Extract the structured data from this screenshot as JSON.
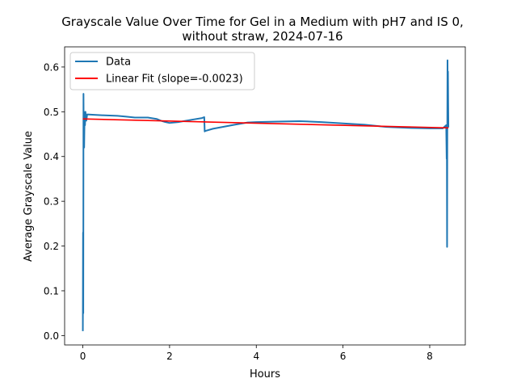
{
  "chart_data": {
    "type": "line",
    "title_line1": "Grayscale Value Over Time for Gel in a Medium with pH7 and IS 0,",
    "title_line2": "without straw, 2024-07-16",
    "xlabel": "Hours",
    "ylabel": "Average Grayscale Value",
    "xlim": [
      -0.42,
      8.82
    ],
    "ylim": [
      -0.021,
      0.645
    ],
    "xticks": [
      0,
      2,
      4,
      6,
      8
    ],
    "xtick_labels": [
      "0",
      "2",
      "4",
      "6",
      "8"
    ],
    "yticks": [
      0.0,
      0.1,
      0.2,
      0.3,
      0.4,
      0.5,
      0.6
    ],
    "ytick_labels": [
      "0.0",
      "0.1",
      "0.2",
      "0.3",
      "0.4",
      "0.5",
      "0.6"
    ],
    "grid": false,
    "legend_position": "upper left",
    "series": [
      {
        "name": "Data",
        "color": "#1f77b4",
        "x": [
          0.0,
          0.005,
          0.01,
          0.015,
          0.02,
          0.025,
          0.03,
          0.04,
          0.05,
          0.06,
          0.08,
          0.1,
          0.3,
          0.5,
          0.8,
          1.0,
          1.2,
          1.5,
          1.7,
          1.8,
          1.9,
          2.0,
          2.2,
          2.5,
          2.75,
          2.8,
          2.81,
          2.82,
          3.0,
          3.5,
          3.8,
          4.0,
          4.5,
          5.0,
          5.5,
          6.0,
          6.5,
          7.0,
          7.5,
          8.0,
          8.3,
          8.38,
          8.39,
          8.395,
          8.4,
          8.405,
          8.41,
          8.415,
          8.42,
          8.425,
          8.43
        ],
        "y": [
          0.01,
          0.23,
          0.05,
          0.54,
          0.44,
          0.5,
          0.42,
          0.49,
          0.47,
          0.5,
          0.48,
          0.494,
          0.493,
          0.492,
          0.491,
          0.489,
          0.487,
          0.487,
          0.484,
          0.48,
          0.477,
          0.475,
          0.477,
          0.482,
          0.486,
          0.488,
          0.456,
          0.457,
          0.462,
          0.471,
          0.476,
          0.477,
          0.478,
          0.479,
          0.477,
          0.474,
          0.471,
          0.466,
          0.464,
          0.463,
          0.463,
          0.47,
          0.395,
          0.44,
          0.198,
          0.45,
          0.615,
          0.47,
          0.59,
          0.52,
          0.465
        ]
      },
      {
        "name": "Linear Fit (slope=-0.0023)",
        "color": "#ff0000",
        "x": [
          0.0,
          8.43
        ],
        "y": [
          0.484,
          0.464
        ]
      }
    ]
  }
}
